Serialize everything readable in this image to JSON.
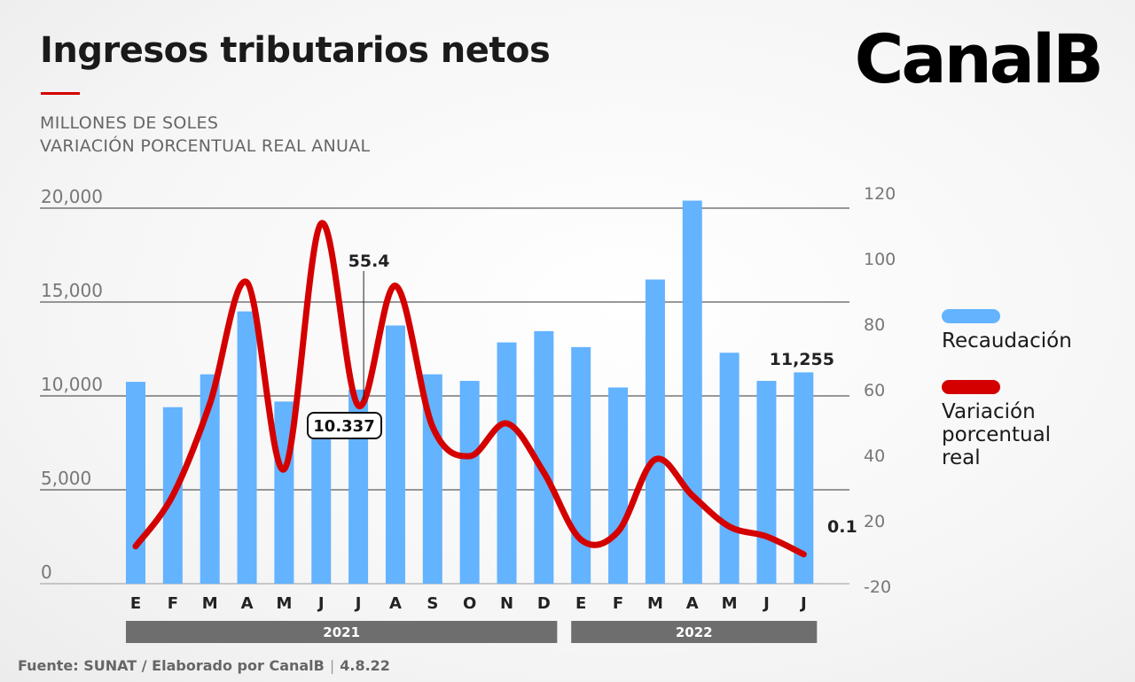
{
  "header": {
    "title": "Ingresos tributarios netos",
    "subtitle_1": "MILLONES DE SOLES",
    "subtitle_2": "VARIACIÓN PORCENTUAL REAL ANUAL",
    "brand": "CanalB"
  },
  "legend": [
    {
      "label": "Recaudación",
      "color": "#63b3ff"
    },
    {
      "label": "Variación porcentual real",
      "color": "#d40000"
    }
  ],
  "footer": {
    "source": "Fuente: SUNAT / Elaborado por CanalB",
    "date": "4.8.22"
  },
  "chart_data": {
    "type": "bar+line",
    "categories": [
      "E",
      "F",
      "M",
      "A",
      "M",
      "J",
      "J",
      "A",
      "S",
      "O",
      "N",
      "D",
      "E",
      "F",
      "M",
      "A",
      "M",
      "J",
      "J"
    ],
    "year_groups": [
      {
        "label": "2021",
        "start": 0,
        "end": 11
      },
      {
        "label": "2022",
        "start": 12,
        "end": 18
      }
    ],
    "series": [
      {
        "name": "Recaudación",
        "type": "bar",
        "axis": "left",
        "color": "#63b3ff",
        "values": [
          10750,
          9400,
          11150,
          14500,
          9700,
          8000,
          10337,
          13750,
          11150,
          10800,
          12850,
          13450,
          12600,
          10450,
          16200,
          20400,
          12300,
          10800,
          11255
        ]
      },
      {
        "name": "Variación porcentual real",
        "type": "line",
        "axis": "right",
        "color": "#d40000",
        "values": [
          5,
          28,
          56,
          93,
          36,
          111,
          55.4,
          92,
          49,
          40,
          50,
          35,
          9,
          14,
          39,
          28,
          17,
          11,
          0.1
        ]
      }
    ],
    "left_axis": {
      "ticks": [
        "0",
        "5,000",
        "10,000",
        "15,000",
        "20,000"
      ],
      "ylim": [
        0,
        20000
      ]
    },
    "right_axis": {
      "ticks": [
        "-20",
        "20",
        "40",
        "60",
        "80",
        "100",
        "120"
      ]
    },
    "annotations": [
      {
        "text": "55.4",
        "series": 1,
        "index": 6
      },
      {
        "text": "10.337",
        "series": 0,
        "index": 6,
        "boxed": true
      },
      {
        "text": "11,255",
        "series": 0,
        "index": 18
      },
      {
        "text": "0.1",
        "series": 1,
        "index": 18
      }
    ],
    "grid": true
  }
}
